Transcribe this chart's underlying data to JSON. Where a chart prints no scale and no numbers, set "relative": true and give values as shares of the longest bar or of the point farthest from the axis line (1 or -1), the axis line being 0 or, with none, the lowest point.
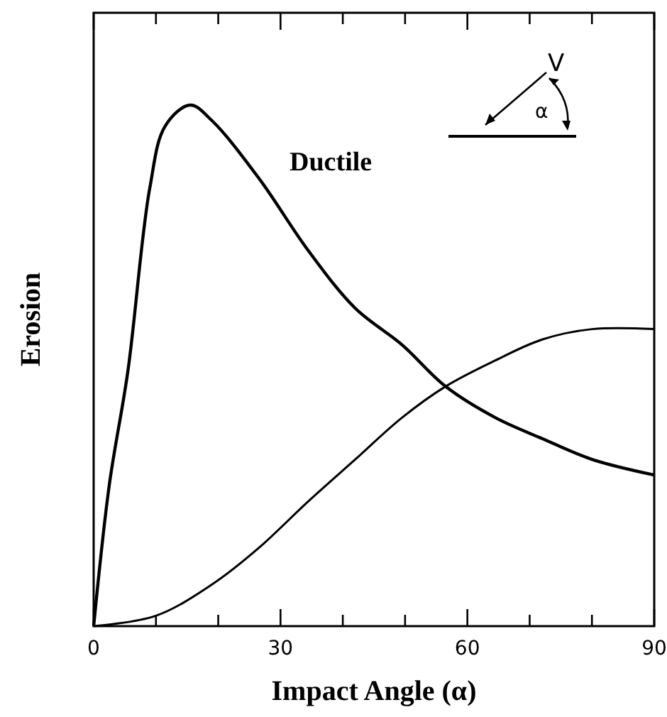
{
  "chart_data": {
    "type": "line",
    "xlabel": "Impact Angle (α)",
    "ylabel": "Erosion",
    "relative": true,
    "xlim": [
      0,
      90
    ],
    "xticks": [
      0,
      {
        "value": 10,
        "label": null
      },
      {
        "value": 20,
        "label": null
      },
      30,
      {
        "value": 40,
        "label": null
      },
      {
        "value": 50,
        "label": null
      },
      60,
      {
        "value": 70,
        "label": null
      },
      {
        "value": 80,
        "label": null
      },
      90
    ],
    "annotations": [
      "V",
      "α"
    ],
    "series": [
      {
        "name": "Ductile",
        "color": "#000000",
        "x": [
          0,
          2.5,
          5.5,
          9,
          11.5,
          15.5,
          19,
          26.5,
          34.5,
          42,
          49.5,
          56.5,
          64.5,
          72,
          80,
          90
        ],
        "values": [
          0,
          0.27,
          0.49,
          0.84,
          0.96,
          1,
          0.97,
          0.86,
          0.72,
          0.61,
          0.54,
          0.46,
          0.4,
          0.36,
          0.32,
          0.29
        ]
      },
      {
        "color": "#000000",
        "x": [
          0,
          10,
          19,
          26.5,
          34.5,
          42,
          49.5,
          56.5,
          64.5,
          72,
          80,
          90
        ],
        "values": [
          0,
          0.02,
          0.08,
          0.15,
          0.24,
          0.32,
          0.4,
          0.46,
          0.51,
          0.55,
          0.57,
          0.57
        ]
      }
    ]
  }
}
